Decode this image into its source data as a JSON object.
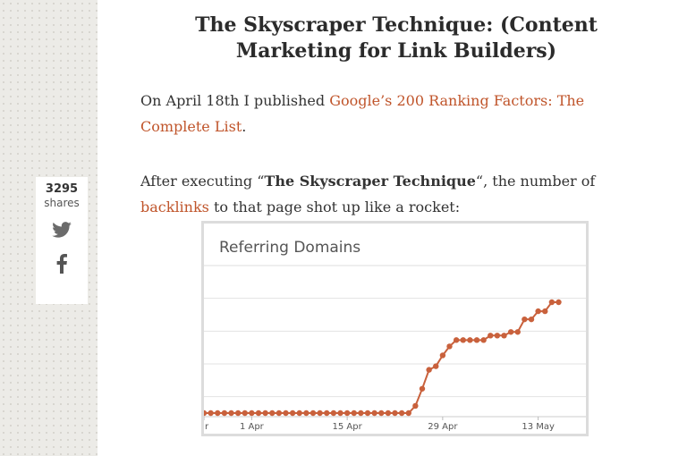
{
  "sidebar": {
    "share_count": "3295",
    "share_label": "shares",
    "icons": [
      "twitter-icon",
      "facebook-icon"
    ]
  },
  "article": {
    "title": "The Skyscraper Technique: (Content Marketing for Link Builders)",
    "p1_text": "On April 18th I published ",
    "p1_link": "Google’s 200 Ranking Factors: The Complete List",
    "p1_end": ".",
    "p2_pre": "After executing “",
    "p2_bold": "The Skyscraper Technique",
    "p2_mid": "“, the number of ",
    "p2_link": "backlinks",
    "p2_end": " to that page shot up like a rocket:"
  },
  "colors": {
    "link": "#c0552b",
    "series": "#c9613c",
    "sidebar_bg": "#ecebe7"
  },
  "chart_data": {
    "type": "line",
    "title": "Referring Domains",
    "xlabel": "",
    "ylabel": "",
    "xlim": [
      "2014-03-25",
      "2014-05-20"
    ],
    "x_ticks": [
      {
        "date": "2014-03-25",
        "label": "r"
      },
      {
        "date": "2014-04-01",
        "label": "1 Apr"
      },
      {
        "date": "2014-04-15",
        "label": "15 Apr"
      },
      {
        "date": "2014-04-29",
        "label": "29 Apr"
      },
      {
        "date": "2014-05-13",
        "label": "13 May"
      }
    ],
    "grid": true,
    "y_gridlines": 4,
    "series": [
      {
        "values": [
          {
            "x": "2014-03-25",
            "y": 0
          },
          {
            "x": "2014-03-26",
            "y": 0
          },
          {
            "x": "2014-03-27",
            "y": 0
          },
          {
            "x": "2014-03-28",
            "y": 0
          },
          {
            "x": "2014-03-29",
            "y": 0
          },
          {
            "x": "2014-03-30",
            "y": 0
          },
          {
            "x": "2014-03-31",
            "y": 0
          },
          {
            "x": "2014-04-01",
            "y": 0
          },
          {
            "x": "2014-04-02",
            "y": 0
          },
          {
            "x": "2014-04-03",
            "y": 0
          },
          {
            "x": "2014-04-04",
            "y": 0
          },
          {
            "x": "2014-04-05",
            "y": 0
          },
          {
            "x": "2014-04-06",
            "y": 0
          },
          {
            "x": "2014-04-07",
            "y": 0
          },
          {
            "x": "2014-04-08",
            "y": 0
          },
          {
            "x": "2014-04-09",
            "y": 0
          },
          {
            "x": "2014-04-10",
            "y": 0
          },
          {
            "x": "2014-04-11",
            "y": 0
          },
          {
            "x": "2014-04-12",
            "y": 0
          },
          {
            "x": "2014-04-13",
            "y": 0
          },
          {
            "x": "2014-04-14",
            "y": 0
          },
          {
            "x": "2014-04-15",
            "y": 0
          },
          {
            "x": "2014-04-16",
            "y": 0
          },
          {
            "x": "2014-04-17",
            "y": 0
          },
          {
            "x": "2014-04-18",
            "y": 0
          },
          {
            "x": "2014-04-19",
            "y": 0
          },
          {
            "x": "2014-04-20",
            "y": 0
          },
          {
            "x": "2014-04-21",
            "y": 0
          },
          {
            "x": "2014-04-22",
            "y": 0
          },
          {
            "x": "2014-04-23",
            "y": 0
          },
          {
            "x": "2014-04-24",
            "y": 0
          },
          {
            "x": "2014-04-25",
            "y": 8
          },
          {
            "x": "2014-04-26",
            "y": 27
          },
          {
            "x": "2014-04-27",
            "y": 48
          },
          {
            "x": "2014-04-28",
            "y": 52
          },
          {
            "x": "2014-04-29",
            "y": 64
          },
          {
            "x": "2014-04-30",
            "y": 74
          },
          {
            "x": "2014-05-01",
            "y": 81
          },
          {
            "x": "2014-05-02",
            "y": 81
          },
          {
            "x": "2014-05-03",
            "y": 81
          },
          {
            "x": "2014-05-04",
            "y": 81
          },
          {
            "x": "2014-05-05",
            "y": 81
          },
          {
            "x": "2014-05-06",
            "y": 86
          },
          {
            "x": "2014-05-07",
            "y": 86
          },
          {
            "x": "2014-05-08",
            "y": 86
          },
          {
            "x": "2014-05-09",
            "y": 90
          },
          {
            "x": "2014-05-10",
            "y": 90
          },
          {
            "x": "2014-05-11",
            "y": 104
          },
          {
            "x": "2014-05-12",
            "y": 104
          },
          {
            "x": "2014-05-13",
            "y": 113
          },
          {
            "x": "2014-05-14",
            "y": 113
          },
          {
            "x": "2014-05-15",
            "y": 123
          },
          {
            "x": "2014-05-16",
            "y": 123
          }
        ]
      }
    ]
  }
}
